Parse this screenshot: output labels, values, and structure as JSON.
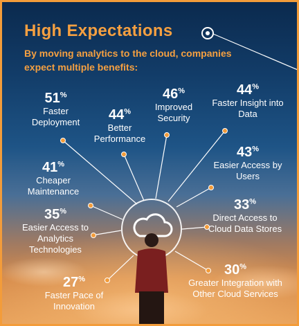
{
  "header": {
    "title": "High Expectations",
    "subtitle": "By moving analytics to the cloud, companies expect multiple benefits:"
  },
  "colors": {
    "accent": "#f39c3a",
    "text": "#ffffff"
  },
  "center_icon": "cloud-icon",
  "stats": [
    {
      "pct": "51",
      "label": "Faster Deployment"
    },
    {
      "pct": "44",
      "label": "Better Performance"
    },
    {
      "pct": "46",
      "label": "Improved Security"
    },
    {
      "pct": "44",
      "label": "Faster Insight into Data"
    },
    {
      "pct": "43",
      "label": "Easier Access by Users"
    },
    {
      "pct": "41",
      "label": "Cheaper Maintenance"
    },
    {
      "pct": "35",
      "label": "Easier Access to Analytics Technologies"
    },
    {
      "pct": "33",
      "label": "Direct Access to Cloud Data Stores"
    },
    {
      "pct": "27",
      "label": "Faster Pace of Innovation"
    },
    {
      "pct": "30",
      "label": "Greater Integration with Other Cloud Services"
    }
  ]
}
